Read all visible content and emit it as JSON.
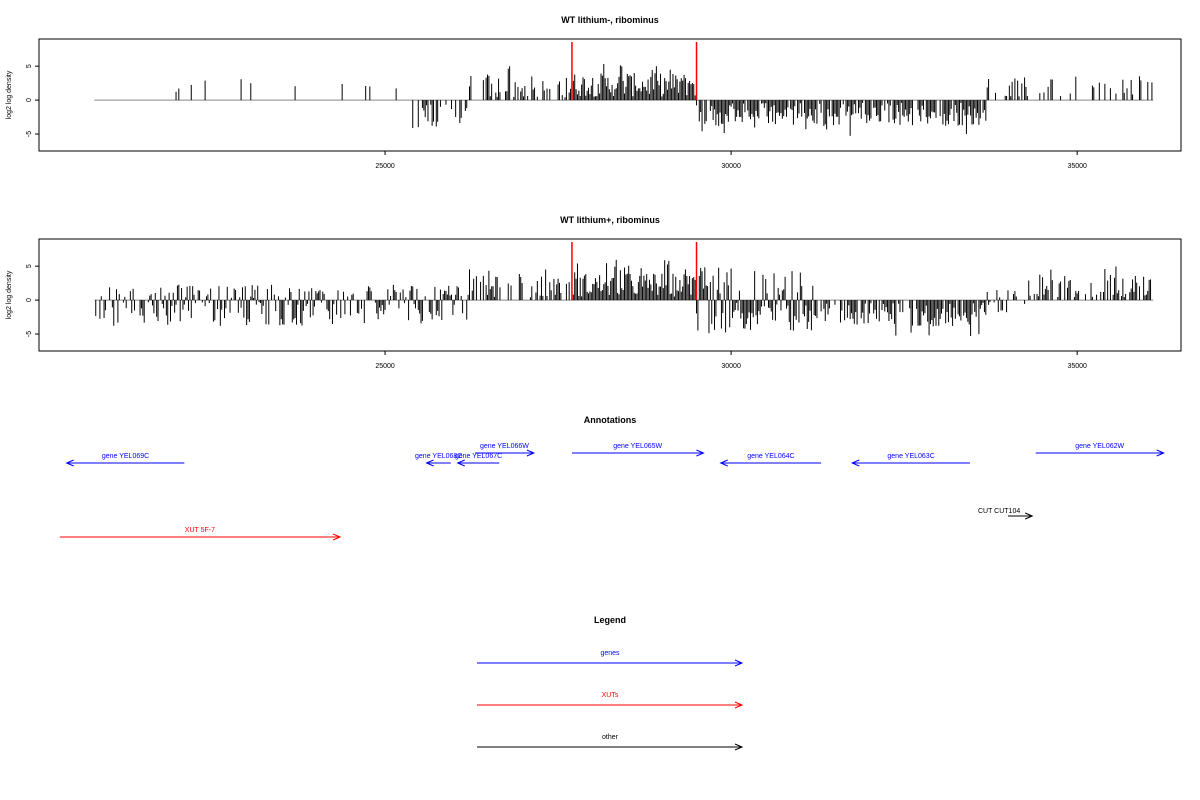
{
  "chart_data": [
    {
      "type": "bar",
      "title": "WT lithium-, ribominus",
      "xlabel": "",
      "ylabel": "log2 log density",
      "xlim": [
        20000,
        36500
      ],
      "ylim": [
        -7.5,
        9
      ],
      "yticks": [
        -5,
        0,
        5
      ],
      "xticks": [
        25000,
        30000,
        35000
      ],
      "markers": [
        27700,
        29500
      ],
      "marker_color": "#ff0000",
      "segments": [
        {
          "from": 20800,
          "to": 25400,
          "mode": "sparse"
        },
        {
          "from": 25400,
          "to": 26200,
          "mode": "neg"
        },
        {
          "from": 26200,
          "to": 27700,
          "mode": "pos"
        },
        {
          "from": 27700,
          "to": 29500,
          "mode": "pos_dense"
        },
        {
          "from": 29500,
          "to": 33700,
          "mode": "neg_dense"
        },
        {
          "from": 33700,
          "to": 36100,
          "mode": "sparse_pos"
        }
      ]
    },
    {
      "type": "bar",
      "title": "WT lithium+, ribominus",
      "xlabel": "",
      "ylabel": "log2 log density",
      "xlim": [
        20000,
        36500
      ],
      "ylim": [
        -7.5,
        9
      ],
      "yticks": [
        -5,
        0,
        5
      ],
      "xticks": [
        25000,
        30000,
        35000
      ],
      "markers": [
        27700,
        29500
      ],
      "marker_color": "#ff0000",
      "segments": [
        {
          "from": 20800,
          "to": 26200,
          "mode": "mixed_neg"
        },
        {
          "from": 26200,
          "to": 27700,
          "mode": "pos"
        },
        {
          "from": 27700,
          "to": 29500,
          "mode": "pos_dense"
        },
        {
          "from": 29500,
          "to": 31200,
          "mode": "mixed"
        },
        {
          "from": 31200,
          "to": 33700,
          "mode": "neg_dense"
        },
        {
          "from": 33700,
          "to": 34300,
          "mode": "mixed_small"
        },
        {
          "from": 34300,
          "to": 36100,
          "mode": "pos"
        }
      ]
    }
  ],
  "annotations": {
    "title": "Annotations",
    "xlim": [
      20000,
      36500
    ],
    "features": [
      {
        "label": "gene YEL069C",
        "start": 22100,
        "end": 20400,
        "lane": 1,
        "color": "#0000ff"
      },
      {
        "label": "gene YEL068C",
        "start": 25950,
        "end": 25600,
        "lane": 1,
        "color": "#0000ff"
      },
      {
        "label": "gene YEL067C",
        "start": 26650,
        "end": 26050,
        "lane": 1,
        "color": "#0000ff"
      },
      {
        "label": "gene YEL066W",
        "start": 26300,
        "end": 27150,
        "lane": 0,
        "color": "#0000ff"
      },
      {
        "label": "gene YEL065W",
        "start": 27700,
        "end": 29600,
        "lane": 0,
        "color": "#0000ff"
      },
      {
        "label": "gene YEL064C",
        "start": 31300,
        "end": 29850,
        "lane": 1,
        "color": "#0000ff"
      },
      {
        "label": "gene YEL063C",
        "start": 33450,
        "end": 31750,
        "lane": 1,
        "color": "#0000ff"
      },
      {
        "label": "gene YEL062W",
        "start": 34400,
        "end": 36250,
        "lane": 0,
        "color": "#0000ff"
      },
      {
        "label": "XUT 5F-7",
        "start": 20300,
        "end": 24350,
        "lane": 3,
        "color": "#ff0000"
      },
      {
        "label": "CUT CUT104",
        "start": 34000,
        "end": 34350,
        "lane": 2,
        "color": "#000000"
      }
    ]
  },
  "legend": {
    "title": "Legend",
    "items": [
      {
        "label": "genes",
        "color": "#0000ff"
      },
      {
        "label": "XUTs",
        "color": "#ff0000"
      },
      {
        "label": "other",
        "color": "#000000"
      }
    ]
  }
}
